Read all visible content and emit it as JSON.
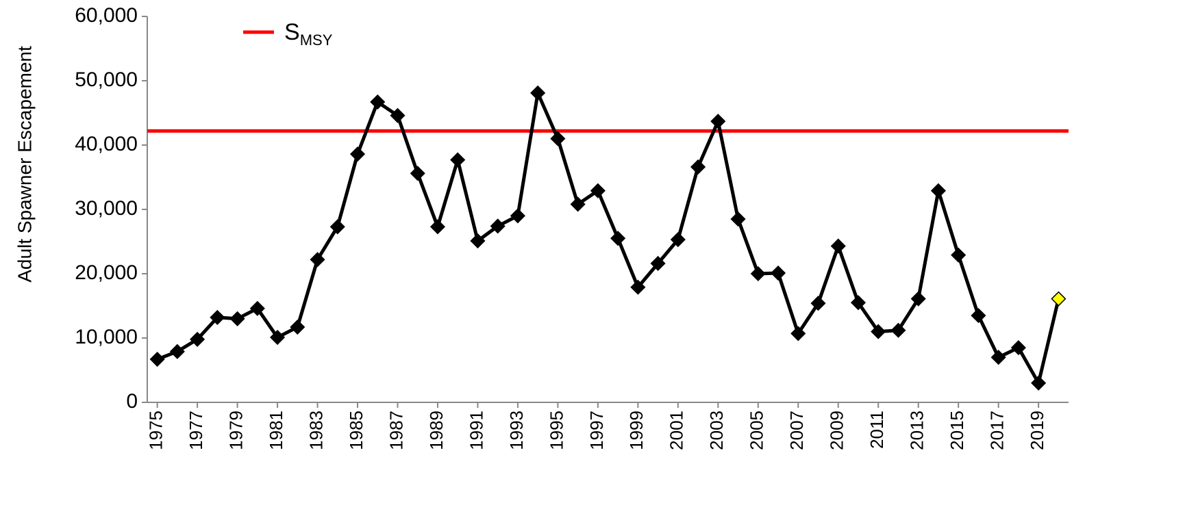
{
  "chart_data": {
    "type": "line",
    "y_label": "Adult Spawner Escapement",
    "x": [
      1975,
      1976,
      1977,
      1978,
      1979,
      1980,
      1981,
      1982,
      1983,
      1984,
      1985,
      1986,
      1987,
      1988,
      1989,
      1990,
      1991,
      1992,
      1993,
      1994,
      1995,
      1996,
      1997,
      1998,
      1999,
      2000,
      2001,
      2002,
      2003,
      2004,
      2005,
      2006,
      2007,
      2008,
      2009,
      2010,
      2011,
      2012,
      2013,
      2014,
      2015,
      2016,
      2017,
      2018,
      2019,
      2020
    ],
    "series": [
      {
        "name": "Escapement",
        "color": "#000000",
        "values": [
          6700,
          7900,
          9800,
          13200,
          13000,
          14600,
          10100,
          11700,
          22200,
          27300,
          38600,
          46700,
          44600,
          35600,
          27300,
          37700,
          25100,
          27400,
          29000,
          48100,
          41000,
          30800,
          32900,
          25500,
          17900,
          21600,
          25300,
          36600,
          43700,
          28500,
          20000,
          20100,
          10700,
          15400,
          24300,
          15500,
          11000,
          11200,
          16100,
          32900,
          22900,
          13500,
          7000,
          8500,
          3000,
          16100
        ],
        "marker_colors": [
          "#000000",
          "#000000",
          "#000000",
          "#000000",
          "#000000",
          "#000000",
          "#000000",
          "#000000",
          "#000000",
          "#000000",
          "#000000",
          "#000000",
          "#000000",
          "#000000",
          "#000000",
          "#000000",
          "#000000",
          "#000000",
          "#000000",
          "#000000",
          "#000000",
          "#000000",
          "#000000",
          "#000000",
          "#000000",
          "#000000",
          "#000000",
          "#000000",
          "#000000",
          "#000000",
          "#000000",
          "#000000",
          "#000000",
          "#000000",
          "#000000",
          "#000000",
          "#000000",
          "#000000",
          "#000000",
          "#000000",
          "#000000",
          "#000000",
          "#000000",
          "#000000",
          "#000000",
          "#ffff00"
        ]
      }
    ],
    "reference_line": {
      "name": "S",
      "subscript": "MSY",
      "value": 42200,
      "color": "#ff0000"
    },
    "xlim": [
      1974.5,
      2020.5
    ],
    "xticks": [
      1975,
      1977,
      1979,
      1981,
      1983,
      1985,
      1987,
      1989,
      1991,
      1993,
      1995,
      1997,
      1999,
      2001,
      2003,
      2005,
      2007,
      2009,
      2011,
      2013,
      2015,
      2017,
      2019
    ],
    "ylim": [
      0,
      60000
    ],
    "yticks": [
      0,
      {
        "value": 10000,
        "label": "10,000"
      },
      {
        "value": 20000,
        "label": "20,000"
      },
      {
        "value": 30000,
        "label": "30,000"
      },
      {
        "value": 40000,
        "label": "40,000"
      },
      {
        "value": 50000,
        "label": "50,000"
      },
      {
        "value": 60000,
        "label": "60,000"
      }
    ]
  }
}
